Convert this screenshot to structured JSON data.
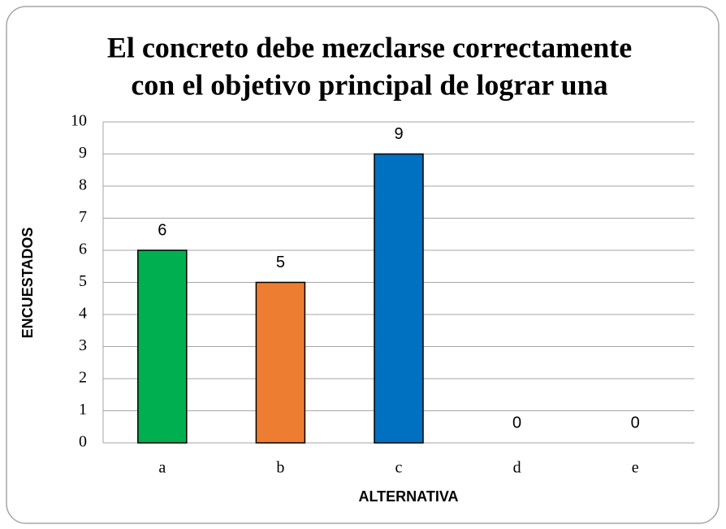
{
  "chart_data": {
    "type": "bar",
    "title": [
      "El concreto debe mezclarse correctamente",
      "con el objetivo principal de lograr una"
    ],
    "categories": [
      "a",
      "b",
      "c",
      "d",
      "e"
    ],
    "values": [
      6,
      5,
      9,
      0,
      0
    ],
    "colors": [
      "#00b050",
      "#ed7d31",
      "#0070c0",
      "#0070c0",
      "#0070c0"
    ],
    "xlabel": "ALTERNATIVA",
    "ylabel": "ENCUESTADOS",
    "ylim": [
      0,
      10
    ],
    "yticks": [
      0,
      1,
      2,
      3,
      4,
      5,
      6,
      7,
      8,
      9,
      10
    ],
    "grid": true
  }
}
